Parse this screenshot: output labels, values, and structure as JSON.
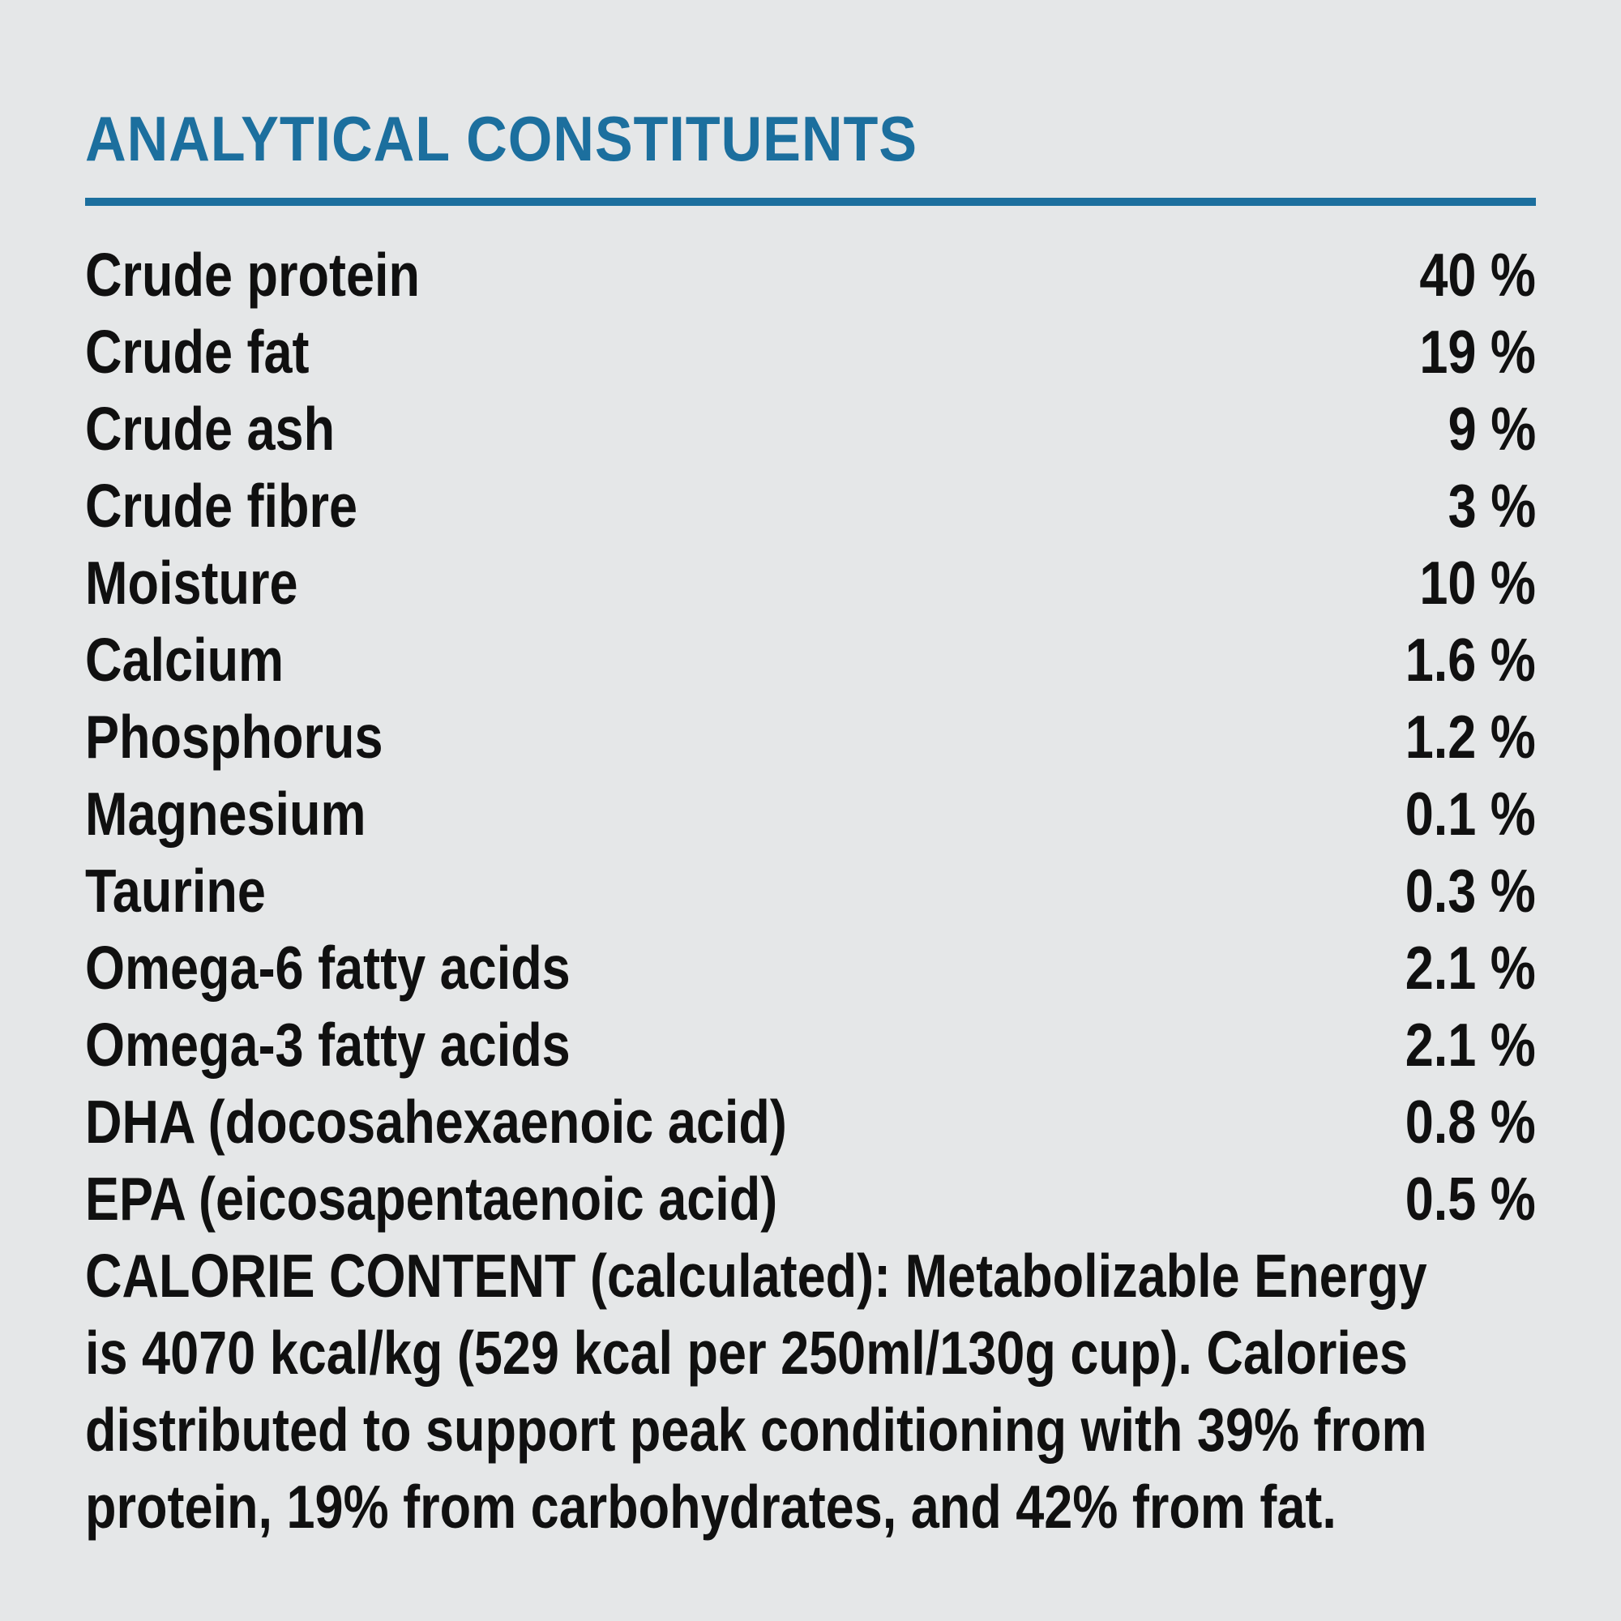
{
  "page": {
    "background_color": "#e5e7e8",
    "accent_color": "#1c6f9e",
    "text_color": "#101010"
  },
  "section": {
    "title": "ANALYTICAL CONSTITUENTS"
  },
  "constituents": {
    "rows": [
      {
        "label": "Crude protein",
        "value": "40 %"
      },
      {
        "label": "Crude fat",
        "value": "19 %"
      },
      {
        "label": "Crude ash",
        "value": "9 %"
      },
      {
        "label": "Crude fibre",
        "value": "3 %"
      },
      {
        "label": "Moisture",
        "value": "10 %"
      },
      {
        "label": "Calcium",
        "value": "1.6 %"
      },
      {
        "label": "Phosphorus",
        "value": "1.2 %"
      },
      {
        "label": "Magnesium",
        "value": "0.1 %"
      },
      {
        "label": "Taurine",
        "value": "0.3 %"
      },
      {
        "label": "Omega-6 fatty acids",
        "value": "2.1 %"
      },
      {
        "label": "Omega-3 fatty acids",
        "value": "2.1 %"
      },
      {
        "label": "DHA (docosahexaenoic acid)",
        "value": "0.8 %"
      },
      {
        "label": "EPA (eicosapentaenoic acid)",
        "value": "0.5 %"
      }
    ]
  },
  "calorie_note": {
    "lines": [
      "CALORIE CONTENT (calculated): Metabolizable Energy",
      "is 4070 kcal/kg (529 kcal per 250ml/130g cup). Calories",
      "distributed to support peak conditioning with 39% from",
      "protein, 19% from carbohydrates, and 42% from fat."
    ]
  }
}
